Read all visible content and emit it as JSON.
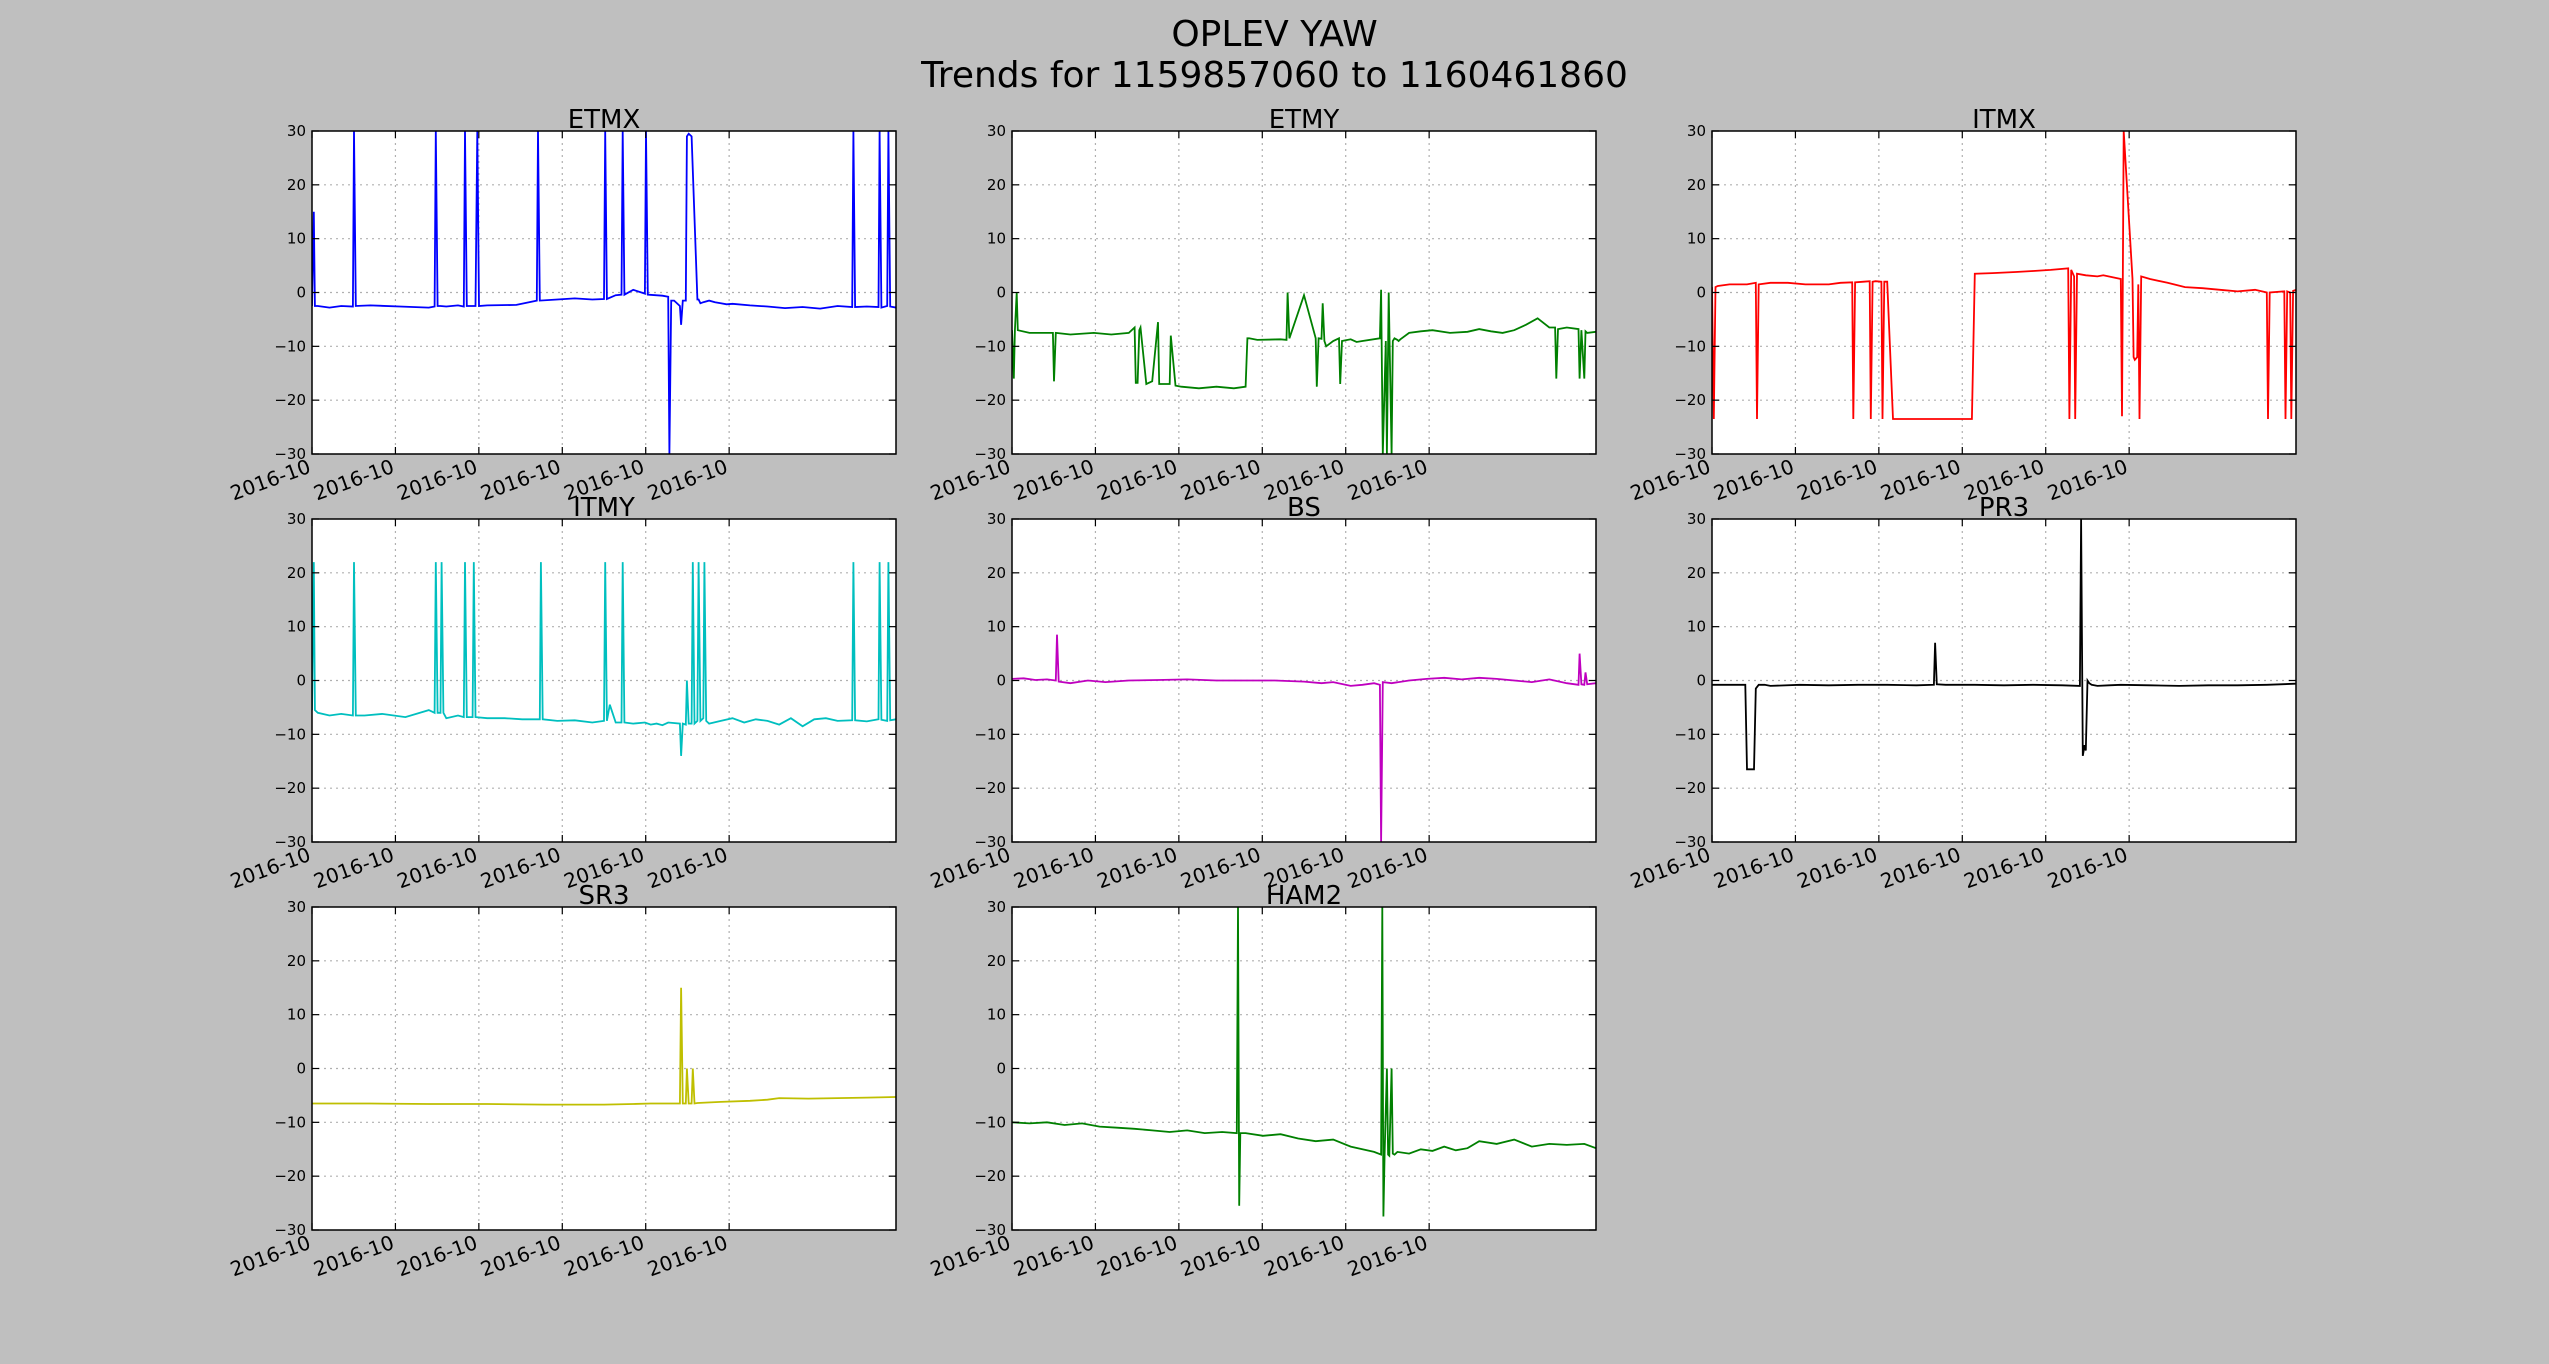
{
  "figure": {
    "title_line1": "OPLEV YAW",
    "title_line2": "Trends for 1159857060 to 1160461860",
    "background": "#bfbfbf"
  },
  "chart_data": [
    {
      "type": "line",
      "title": "ETMX",
      "color": "#0000ff",
      "ylim": [
        -30,
        30
      ],
      "yticks": [
        -30,
        -20,
        -10,
        0,
        10,
        20,
        30
      ],
      "xticklabels": [
        "2016-10",
        "2016-10",
        "2016-10",
        "2016-10",
        "2016-10",
        "2016-10"
      ],
      "grid": true,
      "x": [
        0,
        0.3,
        0.5,
        1,
        3,
        5,
        7,
        7.2,
        7.5,
        10,
        15,
        20,
        21,
        21.2,
        21.5,
        22,
        23,
        25,
        26,
        26.2,
        26.5,
        28,
        28.3,
        28.6,
        30,
        35,
        38.5,
        38.7,
        39,
        42,
        45,
        48,
        50,
        50.2,
        50.5,
        52,
        53,
        53.2,
        53.5,
        55,
        57,
        57.2,
        57.5,
        60,
        61,
        61.2,
        61.5,
        62,
        63,
        63.2,
        63.5,
        64,
        64.2,
        64.5,
        65,
        66,
        66.2,
        66.5,
        67,
        68,
        69,
        70,
        71,
        72,
        75,
        78,
        81,
        84,
        87,
        90,
        92.5,
        92.7,
        93,
        95,
        97,
        97.2,
        97.5,
        98.5,
        98.7,
        99,
        100
      ],
      "y": [
        -2.5,
        15,
        -2.5,
        -2.5,
        -2.8,
        -2.5,
        -2.6,
        30,
        -2.5,
        -2.4,
        -2.6,
        -2.8,
        -2.6,
        30,
        -2.5,
        -2.5,
        -2.6,
        -2.4,
        -2.6,
        30,
        -2.5,
        -2.5,
        30,
        -2.5,
        -2.4,
        -2.3,
        -1.5,
        30,
        -1.5,
        -1.3,
        -1.1,
        -1.3,
        -1.2,
        30,
        -1.2,
        -0.5,
        -0.4,
        30,
        -0.4,
        0.5,
        -0.2,
        30,
        -0.4,
        -0.6,
        -0.8,
        -30,
        -1.5,
        -1.5,
        -2.5,
        -6,
        -1.5,
        -1.5,
        29,
        29.5,
        29,
        -1.3,
        -1.3,
        -2,
        -1.8,
        -1.5,
        -1.8,
        -2.0,
        -2.2,
        -2.1,
        -2.4,
        -2.6,
        -2.9,
        -2.7,
        -3.0,
        -2.5,
        -2.7,
        30,
        -2.7,
        -2.6,
        -2.7,
        30,
        -2.8,
        -2.5,
        30,
        -2.6,
        -2.8
      ]
    },
    {
      "type": "line",
      "title": "ETMY",
      "color": "#008000",
      "ylim": [
        -30,
        30
      ],
      "yticks": [
        -30,
        -20,
        -10,
        0,
        10,
        20,
        30
      ],
      "xticklabels": [
        "2016-10",
        "2016-10",
        "2016-10",
        "2016-10",
        "2016-10",
        "2016-10"
      ],
      "grid": true,
      "x": [
        0,
        0.3,
        0.5,
        0.8,
        1,
        3,
        7,
        7.2,
        7.5,
        10,
        14,
        17,
        20,
        21,
        21.2,
        21.5,
        21.8,
        22,
        23,
        24,
        25,
        25.2,
        25.5,
        27,
        27.2,
        28,
        29,
        32,
        35,
        38,
        40,
        40.3,
        40.6,
        42,
        46,
        47,
        47.2,
        47.5,
        50,
        52,
        52.2,
        52.5,
        53,
        53.2,
        53.5,
        53.8,
        55,
        56,
        56.2,
        56.5,
        58,
        59,
        60,
        63,
        63.2,
        63.5,
        64,
        64.2,
        64.5,
        65,
        65.2,
        65.5,
        66,
        66.2,
        66.5,
        68,
        70,
        72,
        75,
        78,
        80,
        82,
        84,
        86,
        88,
        90,
        92,
        93,
        93.2,
        93.5,
        95,
        97,
        97.2,
        97.5,
        98,
        98.2,
        98.5,
        100
      ],
      "y": [
        -7,
        -16,
        -7,
        0,
        -7,
        -7.5,
        -7.5,
        -16.5,
        -7.5,
        -7.8,
        -7.5,
        -7.8,
        -7.5,
        -6.5,
        -16.8,
        -16.8,
        -7,
        -6.5,
        -17,
        -16.5,
        -5.5,
        -17,
        -17,
        -17,
        -8,
        -17.3,
        -17.5,
        -17.8,
        -17.5,
        -17.8,
        -17.5,
        -8.5,
        -8.5,
        -8.8,
        -8.7,
        -8.8,
        0,
        -8.5,
        -0.5,
        -8.5,
        -17.5,
        -8.5,
        -8.6,
        -2,
        -9,
        -10,
        -9,
        -8.5,
        -17,
        -9,
        -8.7,
        -9.2,
        -9,
        -8.5,
        0.5,
        -30,
        -9,
        -30,
        0,
        -30,
        -9,
        -8.5,
        -8.8,
        -9,
        -8.7,
        -7.5,
        -7.2,
        -7.0,
        -7.5,
        -7.3,
        -6.8,
        -7.2,
        -7.5,
        -7.0,
        -6.0,
        -4.8,
        -6.5,
        -6.5,
        -16,
        -6.8,
        -6.5,
        -6.8,
        -16,
        -7.0,
        -16,
        -7.2,
        -7.5,
        -7.3
      ]
    },
    {
      "type": "line",
      "title": "ITMX",
      "color": "#ff0000",
      "ylim": [
        -30,
        30
      ],
      "yticks": [
        -30,
        -20,
        -10,
        0,
        10,
        20,
        30
      ],
      "xticklabels": [
        "2016-10",
        "2016-10",
        "2016-10",
        "2016-10",
        "2016-10",
        "2016-10"
      ],
      "grid": true,
      "x": [
        0,
        0.3,
        0.6,
        1,
        3,
        6,
        7.5,
        7.7,
        8,
        10,
        13,
        16,
        20,
        22,
        24,
        24.2,
        24.5,
        26,
        27,
        27.2,
        27.5,
        28,
        29,
        29.2,
        29.5,
        30,
        31,
        35,
        40,
        44.5,
        45,
        48,
        52,
        55,
        58,
        61,
        61.2,
        61.5,
        62,
        62.2,
        62.5,
        64,
        66,
        67,
        70,
        70.2,
        70.5,
        72,
        72.2,
        72.4,
        72.8,
        73,
        73.2,
        73.5,
        75,
        78,
        81,
        84,
        87,
        90,
        93,
        95,
        95.2,
        95.5,
        98,
        98.2,
        98.5,
        99,
        99.2,
        99.5,
        100
      ],
      "y": [
        1,
        -23.5,
        1,
        1.2,
        1.5,
        1.5,
        1.8,
        -23.5,
        1.5,
        1.8,
        1.8,
        1.5,
        1.5,
        1.8,
        1.9,
        -23.5,
        1.9,
        2,
        2.1,
        -23.5,
        2,
        2.1,
        2,
        -23.5,
        2,
        2,
        -23.5,
        -23.5,
        -23.5,
        -23.5,
        3.5,
        3.6,
        3.8,
        4,
        4.2,
        4.5,
        -23.5,
        4.2,
        3,
        -23.5,
        3.5,
        3.2,
        3.0,
        3.2,
        2.5,
        -23,
        30,
        2.5,
        -12,
        -12.5,
        -12,
        1.5,
        -23.5,
        3,
        2.5,
        1.8,
        1.0,
        0.8,
        0.5,
        0.2,
        0.5,
        0,
        -23.5,
        0,
        0.2,
        -23.5,
        0.2,
        0,
        -23.5,
        0.3,
        0.5
      ]
    },
    {
      "type": "line",
      "title": "ITMY",
      "color": "#00bfbf",
      "ylim": [
        -30,
        30
      ],
      "yticks": [
        -30,
        -20,
        -10,
        0,
        10,
        20,
        30
      ],
      "xticklabels": [
        "2016-10",
        "2016-10",
        "2016-10",
        "2016-10",
        "2016-10",
        "2016-10"
      ],
      "grid": true,
      "x": [
        0,
        0.3,
        0.5,
        1,
        3,
        5,
        7,
        7.2,
        7.5,
        9,
        12,
        16,
        20,
        21,
        21.2,
        21.5,
        22,
        22.2,
        22.5,
        23,
        25,
        26,
        26.2,
        26.5,
        27.5,
        27.7,
        28,
        30,
        33,
        36,
        39,
        39.2,
        39.5,
        42,
        45,
        48,
        50,
        50.2,
        50.5,
        51,
        52,
        53,
        53.2,
        53.5,
        55,
        57,
        58,
        59,
        60,
        61,
        63,
        63.2,
        63.5,
        64,
        64.2,
        64.5,
        65,
        65.2,
        65.5,
        66,
        66.2,
        66.5,
        67,
        67.2,
        67.5,
        68,
        70,
        72,
        74,
        76,
        78,
        80,
        82,
        84,
        86,
        88,
        90,
        92.5,
        92.7,
        93,
        95,
        97,
        97.2,
        97.5,
        98.5,
        98.7,
        99,
        100
      ],
      "y": [
        -5.5,
        22,
        -5.5,
        -6,
        -6.5,
        -6.2,
        -6.5,
        22,
        -6.5,
        -6.5,
        -6.2,
        -6.8,
        -5.5,
        -6,
        22,
        -6,
        -6,
        22,
        -6,
        -7,
        -6.5,
        -6.8,
        22,
        -6.8,
        -6.8,
        22,
        -6.8,
        -7,
        -7,
        -7.2,
        -7.2,
        22,
        -7.2,
        -7.5,
        -7.4,
        -7.8,
        -7.5,
        22,
        -7.5,
        -4.5,
        -7.8,
        -7.8,
        22,
        -7.8,
        -8,
        -7.8,
        -8.2,
        -8.0,
        -8.3,
        -7.8,
        -8,
        -14,
        -8,
        -8.2,
        0,
        -8,
        -8,
        22,
        -8,
        -7.5,
        22,
        -7.5,
        -7,
        22,
        -7.5,
        -8.0,
        -7.5,
        -7.0,
        -7.8,
        -7.2,
        -7.5,
        -8.2,
        -7.0,
        -8.5,
        -7.2,
        -7.0,
        -7.5,
        -7.4,
        22,
        -7.4,
        -7.6,
        -7.2,
        22,
        -7.3,
        -7.5,
        22,
        -7.4,
        -7.2
      ]
    },
    {
      "type": "line",
      "title": "BS",
      "color": "#bf00bf",
      "ylim": [
        -30,
        30
      ],
      "yticks": [
        -30,
        -20,
        -10,
        0,
        10,
        20,
        30
      ],
      "xticklabels": [
        "2016-10",
        "2016-10",
        "2016-10",
        "2016-10",
        "2016-10",
        "2016-10"
      ],
      "grid": true,
      "x": [
        0,
        2,
        4,
        6,
        7.5,
        7.7,
        8,
        10,
        13,
        16,
        20,
        25,
        30,
        35,
        40,
        45,
        50,
        53,
        55,
        58,
        60,
        62,
        63,
        63.2,
        63.5,
        65,
        68,
        71,
        74,
        77,
        80,
        83,
        86,
        89,
        92,
        95,
        97,
        97.2,
        97.5,
        98,
        98.2,
        98.5,
        100
      ],
      "y": [
        0.3,
        0.4,
        0.1,
        0.2,
        0,
        8.5,
        -0.2,
        -0.5,
        0,
        -0.3,
        0,
        0.1,
        0.2,
        0,
        0,
        0,
        -0.2,
        -0.5,
        -0.3,
        -1.0,
        -0.8,
        -0.5,
        -0.8,
        -30,
        -0.3,
        -0.5,
        0,
        0.3,
        0.5,
        0.2,
        0.5,
        0.3,
        0,
        -0.3,
        0.2,
        -0.5,
        -0.8,
        5,
        -0.7,
        -0.8,
        1.5,
        -0.7,
        -0.5
      ]
    },
    {
      "type": "line",
      "title": "PR3",
      "color": "#000000",
      "ylim": [
        -30,
        30
      ],
      "yticks": [
        -30,
        -20,
        -10,
        0,
        10,
        20,
        30
      ],
      "xticklabels": [
        "2016-10",
        "2016-10",
        "2016-10",
        "2016-10",
        "2016-10",
        "2016-10"
      ],
      "grid": true,
      "x": [
        0,
        2,
        4,
        5.7,
        6,
        7.2,
        7.5,
        8,
        9,
        10,
        15,
        20,
        25,
        30,
        35,
        38,
        38.2,
        38.5,
        40,
        45,
        50,
        55,
        60,
        63,
        63.2,
        63.5,
        63.8,
        64,
        64.3,
        64.6,
        65,
        66,
        68,
        70,
        75,
        80,
        85,
        90,
        95,
        100
      ],
      "y": [
        -0.8,
        -0.8,
        -0.8,
        -0.8,
        -16.5,
        -16.5,
        -1.5,
        -0.8,
        -0.8,
        -1.0,
        -0.8,
        -0.9,
        -0.8,
        -0.8,
        -0.9,
        -0.8,
        7,
        -0.7,
        -0.8,
        -0.8,
        -0.9,
        -0.8,
        -0.9,
        -1.0,
        30,
        -14,
        -12,
        -13,
        0,
        -0.5,
        -0.8,
        -1.0,
        -0.9,
        -0.8,
        -0.9,
        -1.0,
        -0.9,
        -0.9,
        -0.8,
        -0.6
      ]
    },
    {
      "type": "line",
      "title": "SR3",
      "color": "#bfbf00",
      "ylim": [
        -30,
        30
      ],
      "yticks": [
        -30,
        -20,
        -10,
        0,
        10,
        20,
        30
      ],
      "xticklabels": [
        "2016-10",
        "2016-10",
        "2016-10",
        "2016-10",
        "2016-10",
        "2016-10"
      ],
      "grid": true,
      "x": [
        0,
        10,
        20,
        30,
        40,
        50,
        55,
        58,
        62,
        63,
        63.2,
        63.5,
        64,
        64.2,
        64.5,
        65,
        65.2,
        65.5,
        66,
        70,
        75,
        78,
        80,
        85,
        90,
        95,
        100
      ],
      "y": [
        -6.5,
        -6.5,
        -6.6,
        -6.6,
        -6.7,
        -6.7,
        -6.6,
        -6.5,
        -6.5,
        -6.5,
        15,
        -6.5,
        -6.5,
        0,
        -6.5,
        -6.5,
        0,
        -6.5,
        -6.4,
        -6.2,
        -6.0,
        -5.8,
        -5.5,
        -5.6,
        -5.5,
        -5.4,
        -5.3
      ]
    },
    {
      "type": "line",
      "title": "HAM2",
      "color": "#008000",
      "ylim": [
        -30,
        30
      ],
      "yticks": [
        -30,
        -20,
        -10,
        0,
        10,
        20,
        30
      ],
      "xticklabels": [
        "2016-10",
        "2016-10",
        "2016-10",
        "2016-10",
        "2016-10",
        "2016-10"
      ],
      "grid": true,
      "x": [
        0,
        3,
        6,
        9,
        12,
        15,
        18,
        21,
        24,
        27,
        30,
        33,
        36,
        38.5,
        38.7,
        38.9,
        39.1,
        40,
        43,
        46,
        49,
        52,
        55,
        58,
        60,
        62,
        63.2,
        63.4,
        63.6,
        63.8,
        64.2,
        64.4,
        64.6,
        65,
        65.2,
        65.5,
        66,
        68,
        70,
        72,
        74,
        76,
        78,
        80,
        83,
        86,
        89,
        92,
        95,
        98,
        100
      ],
      "y": [
        -10,
        -10.2,
        -10,
        -10.5,
        -10.2,
        -10.8,
        -11,
        -11.2,
        -11.5,
        -11.8,
        -11.5,
        -12,
        -11.8,
        -12,
        30,
        -25.5,
        -12,
        -12,
        -12.5,
        -12.2,
        -13,
        -13.5,
        -13.2,
        -14.5,
        -15,
        -15.5,
        -16,
        30,
        -27.5,
        -16,
        0,
        -16,
        -16.2,
        0,
        -15.8,
        -16,
        -15.5,
        -15.8,
        -15,
        -15.3,
        -14.5,
        -15.2,
        -14.8,
        -13.5,
        -14,
        -13.2,
        -14.5,
        -14,
        -14.2,
        -14,
        -14.8
      ]
    }
  ]
}
